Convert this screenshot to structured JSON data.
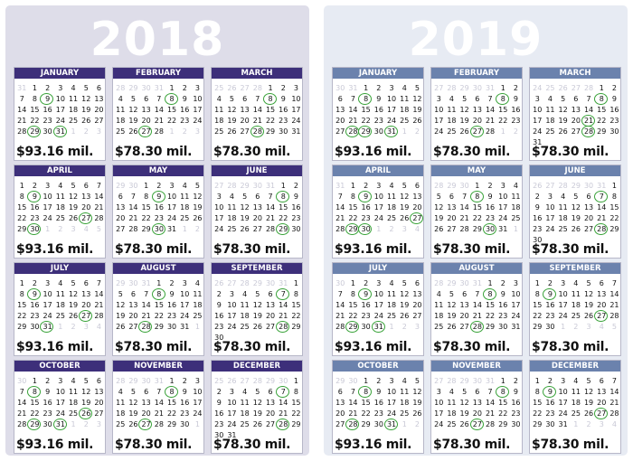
{
  "panels": [
    {
      "year": "2018",
      "bg": "#dedde9",
      "header_color": "#3d2f7a",
      "months": [
        {
          "name": "JANUARY",
          "lead": [
            31
          ],
          "days": 31,
          "trail": [
            1,
            2,
            3
          ],
          "circled": [
            9,
            29,
            31
          ],
          "amount": "$93.16 mil."
        },
        {
          "name": "FEBRUARY",
          "lead": [
            28,
            29,
            30,
            31
          ],
          "days": 28,
          "trail": [
            1,
            2,
            3
          ],
          "circled": [
            8,
            27
          ],
          "amount": "$78.30 mil."
        },
        {
          "name": "MARCH",
          "lead": [
            25,
            26,
            27,
            28
          ],
          "days": 31,
          "trail": [],
          "circled": [
            8,
            28
          ],
          "amount": "$78.30 mil."
        },
        {
          "name": "APRIL",
          "lead": [],
          "days": 30,
          "trail": [
            1,
            2,
            3,
            4,
            5
          ],
          "circled": [
            9,
            27,
            30
          ],
          "amount": "$93.16 mil."
        },
        {
          "name": "MAY",
          "lead": [
            29,
            30
          ],
          "days": 31,
          "trail": [
            1,
            2
          ],
          "circled": [
            9,
            30
          ],
          "amount": "$78.30 mil."
        },
        {
          "name": "JUNE",
          "lead": [
            27,
            28,
            29,
            30,
            31
          ],
          "days": 30,
          "trail": [],
          "circled": [
            8,
            29
          ],
          "amount": "$78.30 mil."
        },
        {
          "name": "JULY",
          "lead": [],
          "days": 31,
          "trail": [
            1,
            2,
            3,
            4
          ],
          "circled": [
            9,
            27,
            31
          ],
          "amount": "$93.16 mil."
        },
        {
          "name": "AUGUST",
          "lead": [
            29,
            30,
            31
          ],
          "days": 31,
          "trail": [
            1
          ],
          "circled": [
            8,
            28
          ],
          "amount": "$78.30 mil."
        },
        {
          "name": "SEPTEMBER",
          "lead": [
            26,
            27,
            28,
            29,
            30,
            31
          ],
          "days": 30,
          "trail": [],
          "circled": [
            7,
            28
          ],
          "amount": "$78.30 mil."
        },
        {
          "name": "OCTOBER",
          "lead": [
            30
          ],
          "days": 31,
          "trail": [
            1,
            2,
            3
          ],
          "circled": [
            8,
            26,
            29,
            31
          ],
          "amount": "$93.16 mil."
        },
        {
          "name": "NOVEMBER",
          "lead": [
            28,
            29,
            30,
            31
          ],
          "days": 30,
          "trail": [
            1
          ],
          "circled": [
            8,
            27
          ],
          "amount": "$78.30 mil."
        },
        {
          "name": "DECEMBER",
          "lead": [
            25,
            26,
            27,
            28,
            29,
            30
          ],
          "days": 31,
          "trail": [],
          "circled": [
            7,
            28
          ],
          "amount": "$78.30 mil."
        }
      ]
    },
    {
      "year": "2019",
      "bg": "#e7ebf3",
      "header_color": "#6b82ad",
      "months": [
        {
          "name": "JANUARY",
          "lead": [
            30,
            31
          ],
          "days": 31,
          "trail": [
            1,
            2
          ],
          "circled": [
            8,
            28,
            29,
            31
          ],
          "amount": "$93.16 mil."
        },
        {
          "name": "FEBRUARY",
          "lead": [
            27,
            28,
            29,
            30,
            31
          ],
          "days": 28,
          "trail": [
            1,
            2
          ],
          "circled": [
            8,
            27
          ],
          "amount": "$78.30 mil."
        },
        {
          "name": "MARCH",
          "lead": [
            24,
            25,
            26,
            27,
            28
          ],
          "days": 31,
          "trail": [],
          "circled": [
            8,
            21,
            28
          ],
          "amount": "$78.30 mil."
        },
        {
          "name": "APRIL",
          "lead": [
            31
          ],
          "days": 30,
          "trail": [
            1,
            2,
            3,
            4
          ],
          "circled": [
            9,
            27,
            29,
            30
          ],
          "amount": "$93.16 mil."
        },
        {
          "name": "MAY",
          "lead": [
            28,
            29,
            30
          ],
          "days": 31,
          "trail": [
            1
          ],
          "circled": [
            8,
            30
          ],
          "amount": "$78.30 mil."
        },
        {
          "name": "JUNE",
          "lead": [
            26,
            27,
            28,
            29,
            30,
            31
          ],
          "days": 30,
          "trail": [],
          "circled": [
            7,
            28
          ],
          "amount": "$78.30 mil."
        },
        {
          "name": "JULY",
          "lead": [
            30
          ],
          "days": 31,
          "trail": [
            1,
            2,
            3
          ],
          "circled": [
            9,
            29,
            31
          ],
          "amount": "$93.16 mil."
        },
        {
          "name": "AUGUST",
          "lead": [
            28,
            29,
            30,
            31
          ],
          "days": 31,
          "trail": [],
          "circled": [
            8,
            28
          ],
          "amount": "$78.30 mil."
        },
        {
          "name": "SEPTEMBER",
          "lead": [],
          "days": 30,
          "trail": [
            1,
            2,
            3,
            4,
            5
          ],
          "circled": [
            9,
            27
          ],
          "amount": "$78.30 mil."
        },
        {
          "name": "OCTOBER",
          "lead": [
            29,
            30
          ],
          "days": 31,
          "trail": [
            1,
            2
          ],
          "circled": [
            8,
            28,
            31
          ],
          "amount": "$93.16 mil."
        },
        {
          "name": "NOVEMBER",
          "lead": [
            27,
            28,
            29,
            30,
            31
          ],
          "days": 30,
          "trail": [],
          "circled": [
            8,
            27
          ],
          "amount": "$78.30 mil."
        },
        {
          "name": "DECEMBER",
          "lead": [],
          "days": 31,
          "trail": [
            1,
            2,
            3,
            4
          ],
          "circled": [
            9,
            27
          ],
          "amount": "$78.30 mil."
        }
      ]
    }
  ]
}
